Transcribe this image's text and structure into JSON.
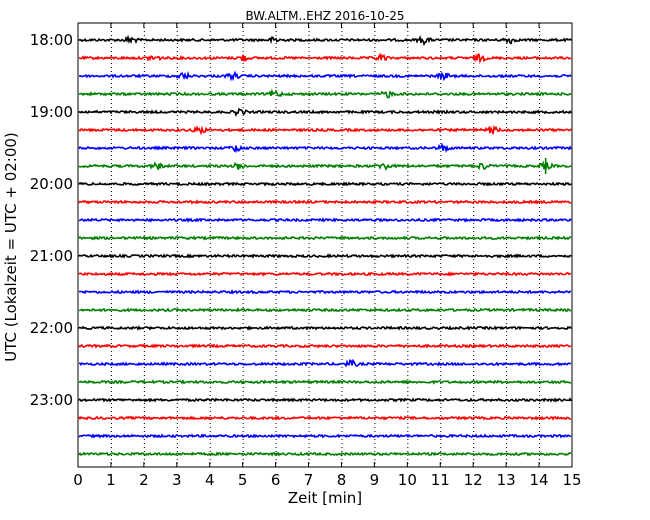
{
  "chart_data": {
    "type": "line",
    "title": "BW.ALTM..EHZ 2016-10-25",
    "xlabel": "Zeit  [min]",
    "ylabel": "UTC (Lokalzeit = UTC + 02:00)",
    "xlim": [
      0,
      15
    ],
    "x_ticks": [
      "0",
      "1",
      "2",
      "3",
      "4",
      "5",
      "6",
      "7",
      "8",
      "9",
      "10",
      "11",
      "12",
      "13",
      "14",
      "15"
    ],
    "y_tick_labels": [
      "18:00",
      "19:00",
      "20:00",
      "21:00",
      "22:00",
      "23:00"
    ],
    "grid": "vertical dotted",
    "trace_interval_minutes": 15,
    "trace_colors": [
      "#000000",
      "#ff0000",
      "#0000ff",
      "#008000"
    ],
    "traces": [
      {
        "start": "18:00",
        "events": [
          1.6,
          6.0,
          10.5,
          13.1
        ]
      },
      {
        "start": "18:15",
        "events": [
          2.3,
          5.0,
          9.2,
          12.2
        ]
      },
      {
        "start": "18:30",
        "events": [
          3.2,
          4.7,
          11.1
        ]
      },
      {
        "start": "18:45",
        "events": [
          6.0,
          9.4
        ]
      },
      {
        "start": "19:00",
        "events": [
          4.9
        ]
      },
      {
        "start": "19:15",
        "events": [
          3.7,
          12.6
        ]
      },
      {
        "start": "19:30",
        "events": [
          4.8,
          11.1
        ]
      },
      {
        "start": "19:45",
        "events": [
          2.4,
          4.9,
          9.3,
          12.3,
          14.2
        ]
      },
      {
        "start": "20:00",
        "events": []
      },
      {
        "start": "20:15",
        "events": []
      },
      {
        "start": "20:30",
        "events": []
      },
      {
        "start": "20:45",
        "events": []
      },
      {
        "start": "21:00",
        "events": []
      },
      {
        "start": "21:15",
        "events": []
      },
      {
        "start": "21:30",
        "events": []
      },
      {
        "start": "21:45",
        "events": []
      },
      {
        "start": "22:00",
        "events": []
      },
      {
        "start": "22:15",
        "events": []
      },
      {
        "start": "22:30",
        "events": [
          8.3
        ]
      },
      {
        "start": "22:45",
        "events": []
      },
      {
        "start": "23:00",
        "events": []
      },
      {
        "start": "23:15",
        "events": []
      },
      {
        "start": "23:30",
        "events": []
      },
      {
        "start": "23:45",
        "events": []
      }
    ]
  }
}
